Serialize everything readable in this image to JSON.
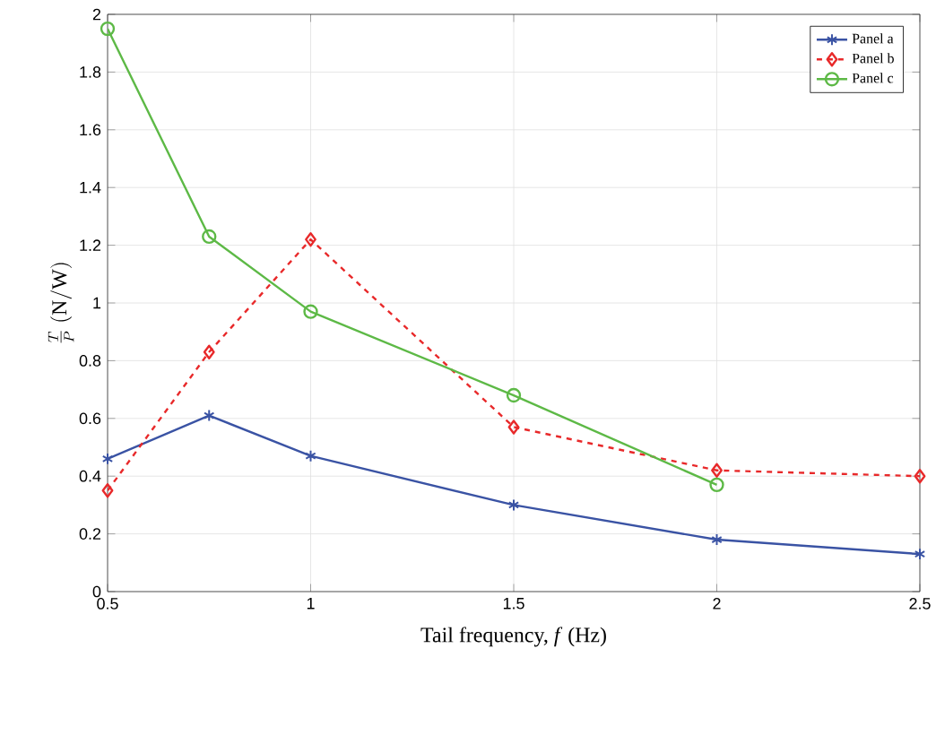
{
  "chart_data": {
    "type": "line",
    "xlabel": "Tail frequency, *f* (Hz)",
    "ylabel": "\\frac{T}{P}\\ \\mathrm{(N/W)}",
    "xlim": [
      0.5,
      2.5
    ],
    "xticks": [
      0.5,
      1,
      1.5,
      2,
      2.5
    ],
    "ylim": [
      0,
      2
    ],
    "yticks": [
      0,
      0.2,
      0.4,
      0.6,
      0.8,
      1,
      1.2,
      1.4,
      1.6,
      1.8,
      2
    ],
    "grid": true,
    "legend": "top right",
    "series": [
      {
        "name": "Panel a",
        "color": "#3a53a4",
        "marker": "cross",
        "line_style": "solid",
        "x": [
          0.5,
          0.75,
          1,
          1.5,
          2,
          2.5
        ],
        "values": [
          0.46,
          0.61,
          0.47,
          0.3,
          0.18,
          0.13
        ]
      },
      {
        "name": "Panel b",
        "color": "#e8292a",
        "marker": "diamond",
        "line_style": "dashed",
        "x": [
          0.5,
          0.75,
          1,
          1.5,
          2,
          2.5
        ],
        "values": [
          0.35,
          0.83,
          1.22,
          0.57,
          0.42,
          0.4
        ]
      },
      {
        "name": "Panel c",
        "color": "#5db946",
        "marker": "circle",
        "line_style": "solid",
        "x": [
          0.5,
          0.75,
          1,
          1.5,
          2
        ],
        "values": [
          1.95,
          1.23,
          0.97,
          0.68,
          0.37
        ]
      }
    ]
  }
}
